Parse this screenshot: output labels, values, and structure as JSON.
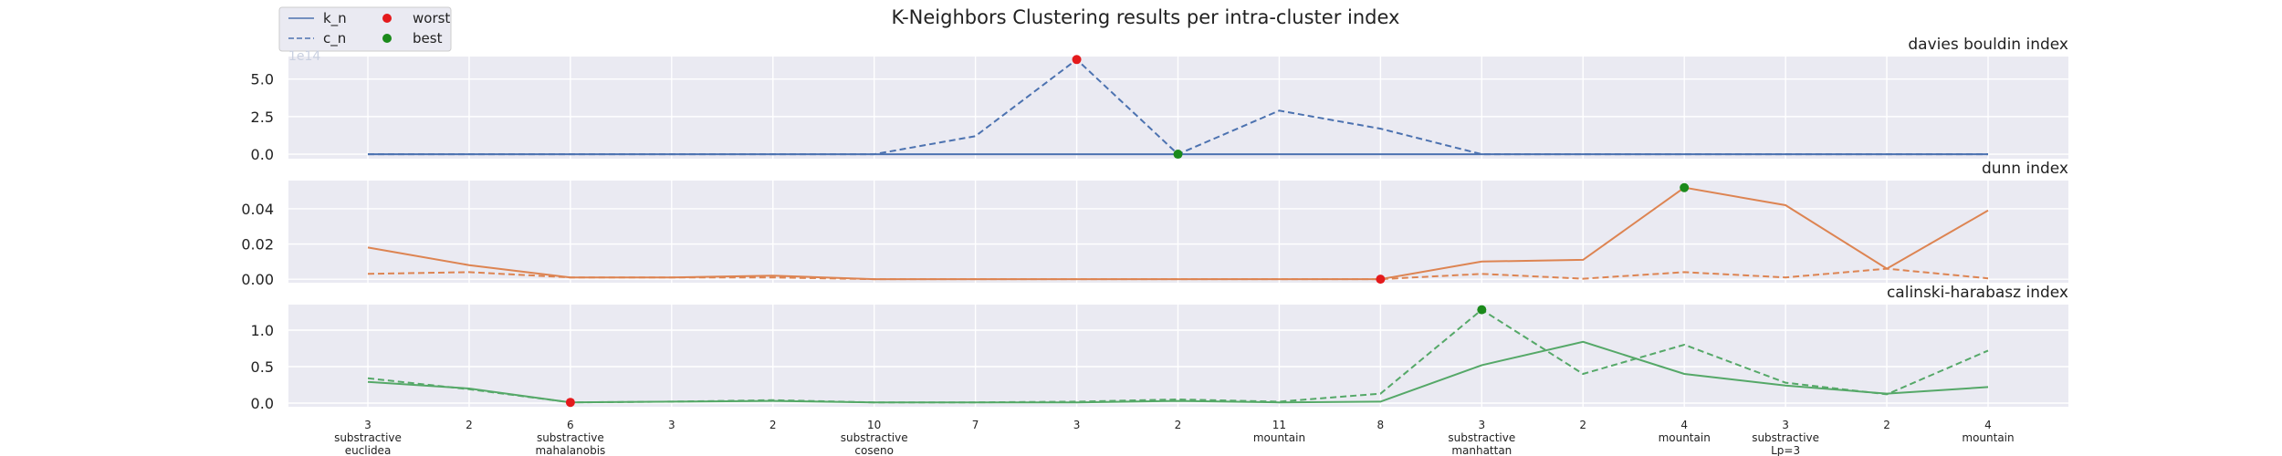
{
  "chart_data": {
    "type": "line",
    "title": "K-Neighbors Clustering results per intra-cluster index",
    "legend": {
      "placement": "top-left",
      "entries": [
        {
          "label": "k_n",
          "style": "solid"
        },
        {
          "label": "c_n",
          "style": "dashed"
        },
        {
          "label": "worst",
          "marker": "point",
          "color": "#e41a1c"
        },
        {
          "label": "best",
          "marker": "point",
          "color": "#1b8a1b"
        }
      ]
    },
    "grid": true,
    "x_tick_labels": [
      [
        "3",
        "substractive",
        "euclidea"
      ],
      [
        "2"
      ],
      [
        "6",
        "substractive",
        "mahalanobis"
      ],
      [
        "3"
      ],
      [
        "2"
      ],
      [
        "10",
        "substractive",
        "coseno"
      ],
      [
        "7"
      ],
      [
        "3"
      ],
      [
        "2"
      ],
      [
        "11",
        "mountain"
      ],
      [
        "8"
      ],
      [
        "3",
        "substractive",
        "manhattan"
      ],
      [
        "2"
      ],
      [
        "4",
        "mountain"
      ],
      [
        "3",
        "substractive",
        "Lp=3"
      ],
      [
        "2"
      ],
      [
        "4",
        "mountain"
      ]
    ],
    "panels": [
      {
        "subtitle": "davies bouldin index",
        "color": "#4c72b0",
        "ylim": [
          -0.3,
          6.5
        ],
        "yticks": [
          "0.0",
          "2.5",
          "5.0"
        ],
        "ytick_values": [
          0,
          2.5,
          5
        ],
        "offset_text": "1e14",
        "series": [
          {
            "legend_label": "k_n",
            "style": "solid",
            "values": [
              0,
              0,
              0,
              0,
              0,
              0,
              0,
              0,
              0,
              0,
              0,
              0,
              0,
              0,
              0,
              0,
              0
            ]
          },
          {
            "legend_label": "c_n",
            "style": "dashed",
            "values": [
              0,
              0,
              0,
              0,
              0,
              0,
              1.2,
              6.3,
              0,
              2.9,
              1.7,
              0,
              0,
              0,
              0,
              0,
              0
            ]
          }
        ],
        "worst": {
          "index": 7,
          "value": 6.3
        },
        "best": {
          "index": 8,
          "value": 0
        }
      },
      {
        "subtitle": "dunn index",
        "color": "#dd8452",
        "ylim": [
          -0.002,
          0.056
        ],
        "yticks": [
          "0.00",
          "0.02",
          "0.04"
        ],
        "ytick_values": [
          0,
          0.02,
          0.04
        ],
        "series": [
          {
            "legend_label": "k_n",
            "style": "solid",
            "values": [
              0.018,
              0.008,
              0.001,
              0.001,
              0.002,
              0,
              0,
              0,
              0,
              0,
              0,
              0.01,
              0.011,
              0.052,
              0.042,
              0.006,
              0.039
            ]
          },
          {
            "legend_label": "c_n",
            "style": "dashed",
            "values": [
              0.003,
              0.004,
              0.001,
              0.001,
              0.001,
              0,
              0,
              0,
              0,
              0,
              0,
              0.003,
              0.0003,
              0.004,
              0.001,
              0.006,
              0.0005
            ]
          }
        ],
        "worst": {
          "index": 10,
          "value": 0
        },
        "best": {
          "index": 13,
          "value": 0.052
        }
      },
      {
        "subtitle": "calinski-harabasz index",
        "color": "#55a868",
        "ylim": [
          -0.05,
          1.35
        ],
        "yticks": [
          "0.0",
          "0.5",
          "1.0"
        ],
        "ytick_values": [
          0,
          0.5,
          1
        ],
        "series": [
          {
            "legend_label": "k_n",
            "style": "solid",
            "values": [
              0.29,
              0.2,
              0.01,
              0.02,
              0.03,
              0.01,
              0.01,
              0.01,
              0.03,
              0.01,
              0.02,
              0.52,
              0.84,
              0.4,
              0.24,
              0.13,
              0.22
            ]
          },
          {
            "legend_label": "c_n",
            "style": "dashed",
            "values": [
              0.34,
              0.19,
              0.01,
              0.02,
              0.04,
              0.01,
              0.01,
              0.02,
              0.05,
              0.02,
              0.13,
              1.28,
              0.4,
              0.8,
              0.28,
              0.12,
              0.72
            ]
          }
        ],
        "worst": {
          "index": 2,
          "value": 0.01
        },
        "best": {
          "index": 11,
          "value": 1.28
        }
      }
    ]
  }
}
